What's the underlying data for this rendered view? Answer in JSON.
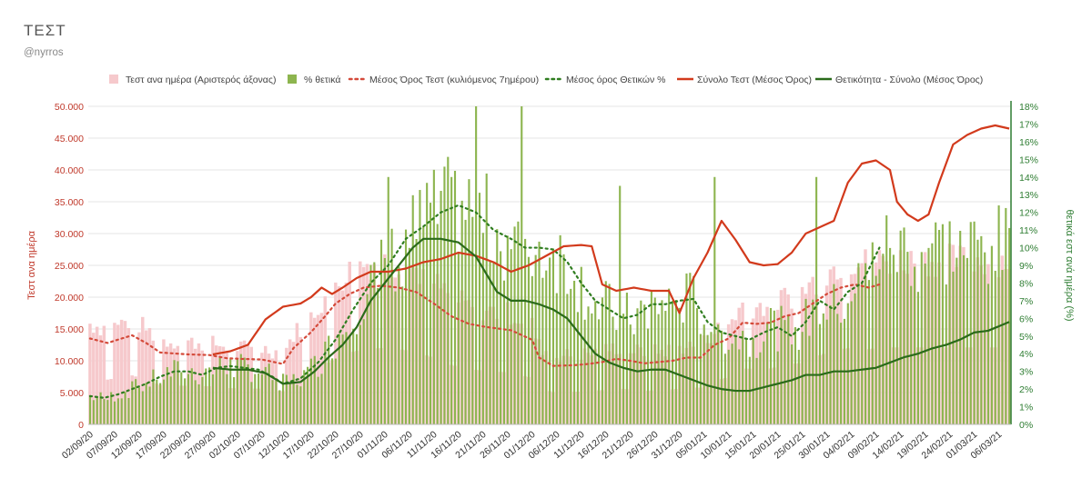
{
  "header": {
    "title": "ΤΕΣΤ",
    "subtitle": "@nyrros"
  },
  "chart_data": {
    "type": "bar",
    "title": "ΤΕΣΤ",
    "ylabel_left": "Τεστ ανα ημέρα",
    "ylabel_right": "θετικά εστ ανά ημέρα (%)",
    "ylim_left": [
      0,
      50000
    ],
    "ylim_right": [
      0,
      18
    ],
    "y_ticks_left": [
      "0",
      "5.000",
      "10.000",
      "15.000",
      "20.000",
      "25.000",
      "30.000",
      "35.000",
      "40.000",
      "45.000",
      "50.000"
    ],
    "y_ticks_right": [
      "0%",
      "1%",
      "2%",
      "3%",
      "4%",
      "5%",
      "6%",
      "7%",
      "8%",
      "9%",
      "10%",
      "11%",
      "12%",
      "13%",
      "14%",
      "15%",
      "16%",
      "17%",
      "18%"
    ],
    "x_labels": [
      "02/09/20",
      "07/09/20",
      "12/09/20",
      "17/09/20",
      "22/09/20",
      "27/09/20",
      "02/10/20",
      "07/10/20",
      "12/10/20",
      "17/10/20",
      "22/10/20",
      "27/10/20",
      "01/11/20",
      "06/11/20",
      "11/11/20",
      "16/11/20",
      "21/11/20",
      "26/11/20",
      "01/12/20",
      "06/12/20",
      "11/12/20",
      "16/12/20",
      "21/12/20",
      "26/12/20",
      "31/12/20",
      "05/01/21",
      "10/01/21",
      "15/01/21",
      "20/01/21",
      "25/01/21",
      "30/01/21",
      "04/02/21",
      "09/02/21",
      "14/02/21",
      "19/02/21",
      "24/02/21",
      "01/03/21",
      "06/03/21"
    ],
    "legend": [
      "Τεστ ανα ημέρα (Αριστερός άξονας)",
      "% θετικά",
      "Μέσος Όρος Τεστ (κυλιόμενος 7ημέρου)",
      "Μέσος όρος Θετικών %",
      "Σύνολο Τεστ (Μέσος Όρος)",
      "Θετικότητα - Σύνολο (Μέσος Όρος)"
    ],
    "legend_position": "top",
    "colors": {
      "tests_bar": "#f6c9cc",
      "pos_bar": "#8db54f",
      "tests_avg": "#d44a3a",
      "pos_avg": "#2f7d1f",
      "tests_total": "#d23a1c",
      "pos_total": "#2a6a1a"
    },
    "series": [
      {
        "name": "Μέσος Όρος Τεστ (κυλιόμενος 7ημέρου)",
        "axis": "left",
        "style": "dotted",
        "keyframes": [
          [
            0,
            13500
          ],
          [
            5,
            12800
          ],
          [
            9,
            13500
          ],
          [
            12,
            14000
          ],
          [
            16,
            12800
          ],
          [
            20,
            11300
          ],
          [
            28,
            11000
          ],
          [
            34,
            10900
          ],
          [
            39,
            10400
          ],
          [
            43,
            10300
          ],
          [
            49,
            10200
          ],
          [
            55,
            9500
          ],
          [
            58,
            12000
          ],
          [
            63,
            14500
          ],
          [
            67,
            17000
          ],
          [
            70,
            19000
          ],
          [
            74,
            20500
          ],
          [
            78,
            21500
          ],
          [
            83,
            21800
          ],
          [
            88,
            21500
          ],
          [
            93,
            20800
          ],
          [
            98,
            19000
          ],
          [
            103,
            17000
          ],
          [
            108,
            15800
          ],
          [
            113,
            15300
          ],
          [
            120,
            14800
          ],
          [
            126,
            13300
          ],
          [
            128,
            10500
          ],
          [
            132,
            9200
          ],
          [
            138,
            9300
          ],
          [
            142,
            9500
          ],
          [
            146,
            9800
          ],
          [
            150,
            10300
          ],
          [
            154,
            10000
          ],
          [
            158,
            9600
          ],
          [
            162,
            9800
          ],
          [
            166,
            10000
          ],
          [
            170,
            10500
          ],
          [
            174,
            10500
          ],
          [
            178,
            12500
          ],
          [
            182,
            13500
          ],
          [
            186,
            16000
          ],
          [
            190,
            15800
          ],
          [
            194,
            16000
          ],
          [
            198,
            17000
          ],
          [
            202,
            17500
          ],
          [
            206,
            19000
          ],
          [
            210,
            20500
          ],
          [
            214,
            21500
          ],
          [
            218,
            22000
          ],
          [
            222,
            21500
          ],
          [
            225,
            22000
          ]
        ]
      },
      {
        "name": "Μέσος όρος Θετικών %",
        "axis": "right",
        "style": "dotted",
        "keyframes": [
          [
            0,
            1.6
          ],
          [
            4,
            1.5
          ],
          [
            8,
            1.7
          ],
          [
            12,
            2.0
          ],
          [
            16,
            2.3
          ],
          [
            20,
            2.7
          ],
          [
            24,
            3.0
          ],
          [
            28,
            3.0
          ],
          [
            32,
            2.8
          ],
          [
            36,
            3.2
          ],
          [
            40,
            3.3
          ],
          [
            44,
            3.2
          ],
          [
            48,
            3.1
          ],
          [
            52,
            2.7
          ],
          [
            55,
            2.3
          ],
          [
            60,
            2.6
          ],
          [
            65,
            3.5
          ],
          [
            70,
            4.8
          ],
          [
            75,
            6.5
          ],
          [
            80,
            8.0
          ],
          [
            85,
            9.0
          ],
          [
            90,
            10.5
          ],
          [
            95,
            11.2
          ],
          [
            100,
            12.0
          ],
          [
            105,
            12.4
          ],
          [
            110,
            12.0
          ],
          [
            115,
            11.0
          ],
          [
            120,
            10.5
          ],
          [
            124,
            10.0
          ],
          [
            128,
            10.0
          ],
          [
            132,
            9.9
          ],
          [
            136,
            9.2
          ],
          [
            140,
            8.0
          ],
          [
            144,
            7.0
          ],
          [
            148,
            6.5
          ],
          [
            152,
            6.0
          ],
          [
            156,
            6.2
          ],
          [
            160,
            6.8
          ],
          [
            164,
            6.8
          ],
          [
            168,
            7.0
          ],
          [
            172,
            7.1
          ],
          [
            176,
            5.8
          ],
          [
            180,
            5.2
          ],
          [
            184,
            5.0
          ],
          [
            188,
            4.8
          ],
          [
            192,
            5.2
          ],
          [
            196,
            5.5
          ],
          [
            200,
            5.0
          ],
          [
            204,
            5.8
          ],
          [
            208,
            7.0
          ],
          [
            212,
            6.5
          ],
          [
            216,
            7.5
          ],
          [
            220,
            8.0
          ],
          [
            225,
            10.0
          ]
        ]
      },
      {
        "name": "Σύνολο Τεστ (Μέσος Όρος)",
        "axis": "left",
        "style": "solid",
        "keyframes": [
          [
            35,
            11000
          ],
          [
            40,
            11500
          ],
          [
            45,
            12500
          ],
          [
            50,
            16500
          ],
          [
            55,
            18500
          ],
          [
            60,
            19000
          ],
          [
            63,
            20000
          ],
          [
            66,
            21500
          ],
          [
            69,
            20500
          ],
          [
            72,
            21500
          ],
          [
            76,
            23000
          ],
          [
            80,
            24000
          ],
          [
            85,
            24000
          ],
          [
            90,
            24500
          ],
          [
            95,
            25500
          ],
          [
            100,
            26000
          ],
          [
            105,
            27000
          ],
          [
            110,
            26500
          ],
          [
            115,
            25500
          ],
          [
            120,
            24000
          ],
          [
            125,
            25000
          ],
          [
            130,
            26500
          ],
          [
            135,
            28000
          ],
          [
            140,
            28200
          ],
          [
            143,
            28000
          ],
          [
            146,
            22000
          ],
          [
            150,
            21000
          ],
          [
            155,
            21500
          ],
          [
            160,
            21000
          ],
          [
            165,
            21000
          ],
          [
            168,
            17500
          ],
          [
            172,
            23000
          ],
          [
            176,
            27000
          ],
          [
            180,
            32000
          ],
          [
            184,
            29000
          ],
          [
            188,
            25500
          ],
          [
            192,
            25000
          ],
          [
            196,
            25200
          ],
          [
            200,
            27000
          ],
          [
            204,
            30000
          ],
          [
            208,
            31000
          ],
          [
            212,
            32000
          ],
          [
            216,
            38000
          ],
          [
            220,
            41000
          ],
          [
            224,
            41500
          ],
          [
            228,
            40000
          ],
          [
            230,
            35000
          ],
          [
            233,
            33000
          ],
          [
            236,
            32000
          ],
          [
            239,
            33000
          ],
          [
            242,
            38000
          ],
          [
            246,
            44000
          ],
          [
            250,
            45500
          ],
          [
            254,
            46500
          ],
          [
            258,
            47000
          ],
          [
            262,
            46500
          ]
        ]
      },
      {
        "name": "Θετικότητα - Σύνολο (Μέσος Όρος)",
        "axis": "right",
        "style": "solid",
        "keyframes": [
          [
            35,
            3.2
          ],
          [
            40,
            3.1
          ],
          [
            45,
            3.1
          ],
          [
            50,
            2.9
          ],
          [
            55,
            2.3
          ],
          [
            60,
            2.4
          ],
          [
            64,
            3.0
          ],
          [
            68,
            3.8
          ],
          [
            72,
            4.5
          ],
          [
            76,
            5.5
          ],
          [
            80,
            7.0
          ],
          [
            84,
            8.0
          ],
          [
            88,
            9.0
          ],
          [
            92,
            10.0
          ],
          [
            95,
            10.5
          ],
          [
            100,
            10.5
          ],
          [
            105,
            10.3
          ],
          [
            110,
            9.5
          ],
          [
            113,
            8.5
          ],
          [
            116,
            7.5
          ],
          [
            120,
            7.0
          ],
          [
            124,
            7.0
          ],
          [
            128,
            6.8
          ],
          [
            132,
            6.5
          ],
          [
            136,
            6.0
          ],
          [
            140,
            5.0
          ],
          [
            144,
            4.0
          ],
          [
            148,
            3.5
          ],
          [
            152,
            3.2
          ],
          [
            156,
            3.0
          ],
          [
            160,
            3.1
          ],
          [
            164,
            3.1
          ],
          [
            168,
            2.8
          ],
          [
            172,
            2.5
          ],
          [
            176,
            2.2
          ],
          [
            180,
            2.0
          ],
          [
            184,
            1.9
          ],
          [
            188,
            1.9
          ],
          [
            192,
            2.1
          ],
          [
            196,
            2.3
          ],
          [
            200,
            2.5
          ],
          [
            204,
            2.8
          ],
          [
            208,
            2.8
          ],
          [
            212,
            3.0
          ],
          [
            216,
            3.0
          ],
          [
            220,
            3.1
          ],
          [
            224,
            3.2
          ],
          [
            228,
            3.5
          ],
          [
            232,
            3.8
          ],
          [
            236,
            4.0
          ],
          [
            240,
            4.3
          ],
          [
            244,
            4.5
          ],
          [
            248,
            4.8
          ],
          [
            252,
            5.2
          ],
          [
            256,
            5.3
          ],
          [
            262,
            5.8
          ]
        ]
      }
    ]
  }
}
